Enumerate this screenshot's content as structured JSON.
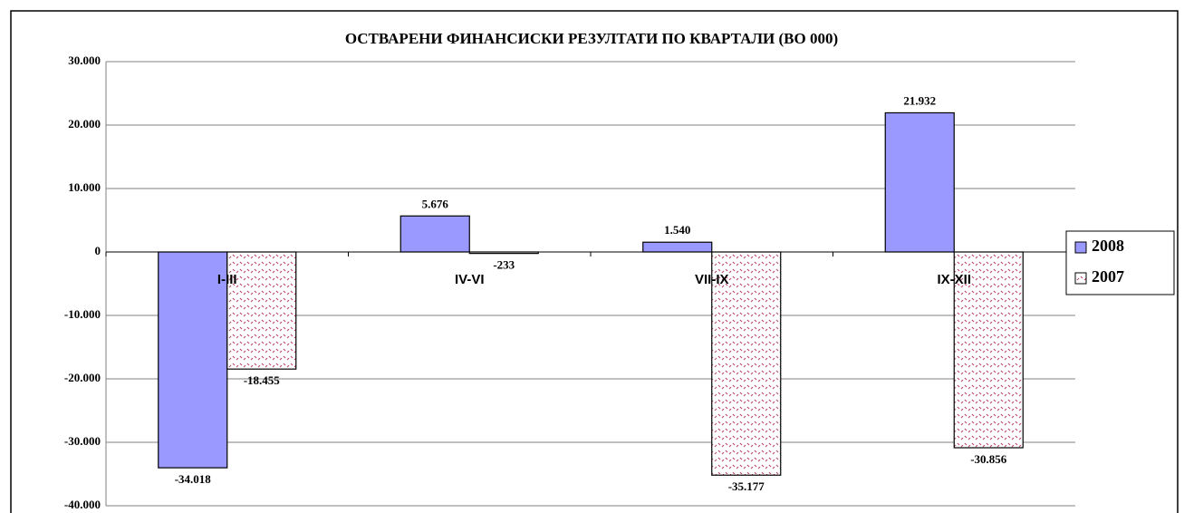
{
  "chart_data": {
    "type": "bar",
    "title": "ОСТВАРЕНИ ФИНАНСИСКИ РЕЗУЛТАТИ ПО КВАРТАЛИ   (ВО 000)",
    "categories": [
      "I-III",
      "IV-VI",
      "VII-IX",
      "IX-XII"
    ],
    "series": [
      {
        "name": "2008",
        "color": "#9999ff",
        "pattern": false,
        "values": [
          -34018,
          5676,
          1540,
          21932
        ],
        "value_labels": [
          "-34.018",
          "5.676",
          "1.540",
          "21.932"
        ]
      },
      {
        "name": "2007",
        "color": "#c0506f",
        "pattern": true,
        "values": [
          -18455,
          -233,
          -35177,
          -30856
        ],
        "value_labels": [
          "-18.455",
          "-233",
          "-35.177",
          "-30.856"
        ]
      }
    ],
    "ylim": [
      -40000,
      30000
    ],
    "yticks": [
      {
        "value": -40000,
        "label": "-40.000"
      },
      {
        "value": -30000,
        "label": "-30.000"
      },
      {
        "value": -20000,
        "label": "-20.000"
      },
      {
        "value": -10000,
        "label": "-10.000"
      },
      0,
      {
        "value": 10000,
        "label": "10.000"
      },
      {
        "value": 20000,
        "label": "20.000"
      },
      {
        "value": 30000,
        "label": "30.000"
      }
    ],
    "grid": true,
    "legend": "right"
  }
}
